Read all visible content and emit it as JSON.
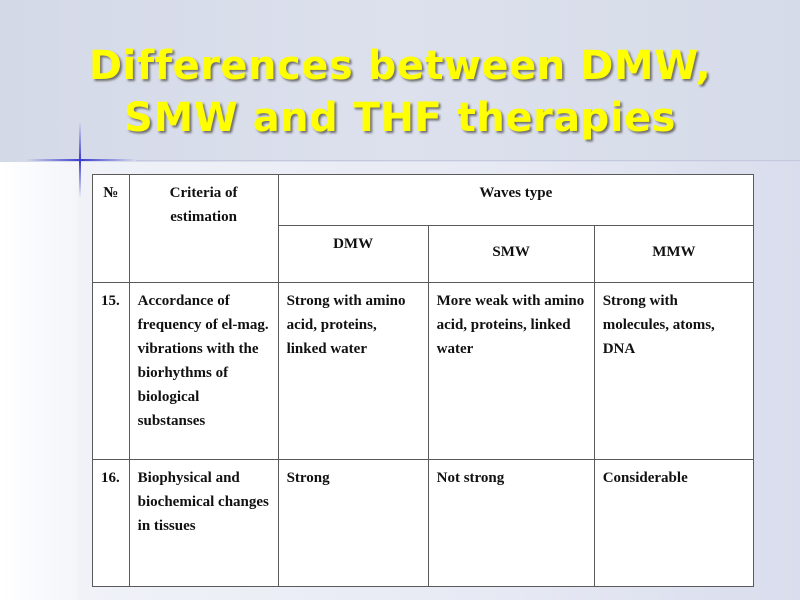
{
  "slide": {
    "title": "Differences between DMW, SMW and THF therapies"
  },
  "table": {
    "header": {
      "number_col": "№",
      "criteria_col": "Criteria of estimation",
      "waves_group": "Waves type",
      "sub_columns": [
        "DMW",
        "SMW",
        "MMW"
      ]
    },
    "rows": [
      {
        "number": "15.",
        "criteria": "Accordance of frequency of el-mag. vibrations with the biorhythms of biological substanses",
        "dmw": "Strong with amino acid, proteins, linked water",
        "smw": "More weak with amino acid, proteins, linked water",
        "mmw": "Strong with molecules, atoms, DNA"
      },
      {
        "number": "16.",
        "criteria": "Biophysical and biochemical changes in tissues",
        "dmw": "Strong",
        "smw": "Not strong",
        "mmw": "Considerable"
      }
    ]
  }
}
